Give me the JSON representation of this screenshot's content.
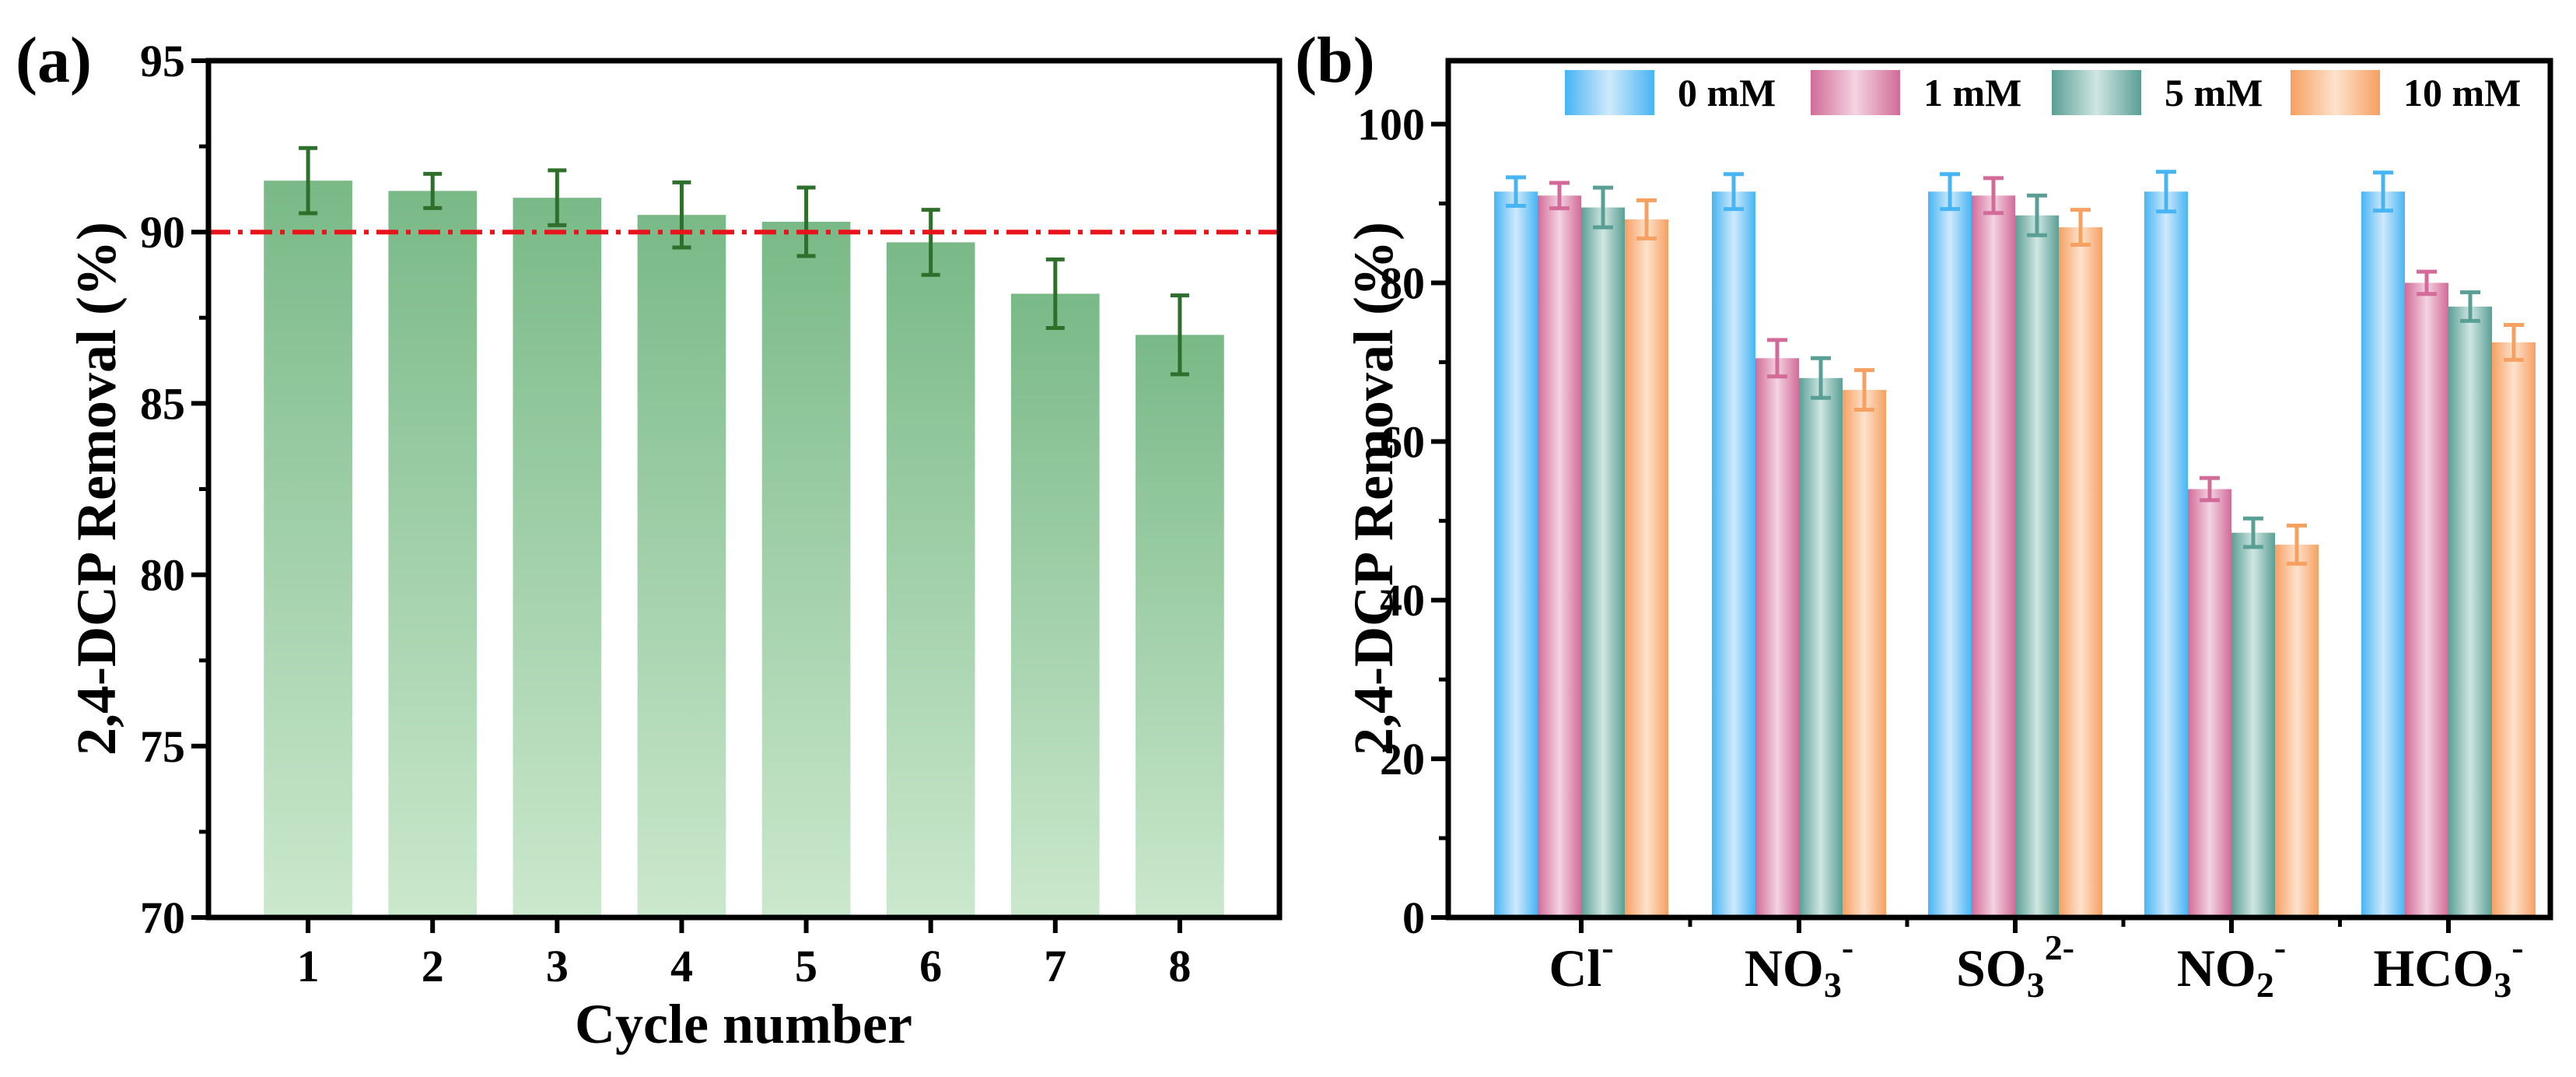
{
  "chart_data": [
    {
      "panel_label": "(a)",
      "type": "bar",
      "xlabel": "Cycle number",
      "ylabel": "2,4-DCP Removal (%)",
      "ylim": [
        70,
        95
      ],
      "yticks": [
        "70",
        "75",
        "80",
        "85",
        "90",
        "95"
      ],
      "categories": [
        "1",
        "2",
        "3",
        "4",
        "5",
        "6",
        "7",
        "8"
      ],
      "values": [
        91.5,
        91.2,
        91.0,
        90.5,
        90.3,
        89.7,
        88.2,
        87.0
      ],
      "errors": [
        0.95,
        0.5,
        0.8,
        0.95,
        1.0,
        0.95,
        1.0,
        1.15
      ],
      "reference_line": 90,
      "colors": {
        "bar_top": "#79b987",
        "bar_bottom": "#cbe8cd",
        "error": "#2f6f2c",
        "reference": "#e8141c"
      }
    },
    {
      "panel_label": "(b)",
      "type": "bar",
      "xlabel": "",
      "ylabel": "2,4-DCP Removal (%)",
      "ylim": [
        0,
        108
      ],
      "yticks": [
        "0",
        "20",
        "40",
        "60",
        "80",
        "100"
      ],
      "categories": [
        {
          "base": "Cl",
          "sub": "",
          "sup": "-"
        },
        {
          "base": "NO",
          "sub": "3",
          "sup": "-"
        },
        {
          "base": "SO",
          "sub": "3",
          "sup": "2-"
        },
        {
          "base": "NO",
          "sub": "2",
          "sup": "-"
        },
        {
          "base": "HCO",
          "sub": "3",
          "sup": "-"
        }
      ],
      "series": [
        {
          "name": "0 mM",
          "values": [
            91.5,
            91.5,
            91.5,
            91.5,
            91.5
          ],
          "errors": [
            1.8,
            2.2,
            2.2,
            2.5,
            2.4
          ],
          "color": "#47b5f4",
          "light": "#cfe9fb"
        },
        {
          "name": "1 mM",
          "values": [
            91.0,
            70.5,
            91.0,
            54.0,
            80.0
          ],
          "errors": [
            1.6,
            2.3,
            2.2,
            1.4,
            1.4
          ],
          "color": "#d26b98",
          "light": "#f3d3e1"
        },
        {
          "name": "5 mM",
          "values": [
            89.5,
            68.0,
            88.5,
            48.5,
            77.0
          ],
          "errors": [
            2.5,
            2.5,
            2.5,
            1.8,
            1.8
          ],
          "color": "#5a9f95",
          "light": "#cfe6e2"
        },
        {
          "name": "10 mM",
          "values": [
            88.0,
            66.5,
            87.0,
            47.0,
            72.5
          ],
          "errors": [
            2.4,
            2.5,
            2.2,
            2.4,
            2.2
          ],
          "color": "#f6a061",
          "light": "#fde2cc"
        }
      ]
    }
  ]
}
